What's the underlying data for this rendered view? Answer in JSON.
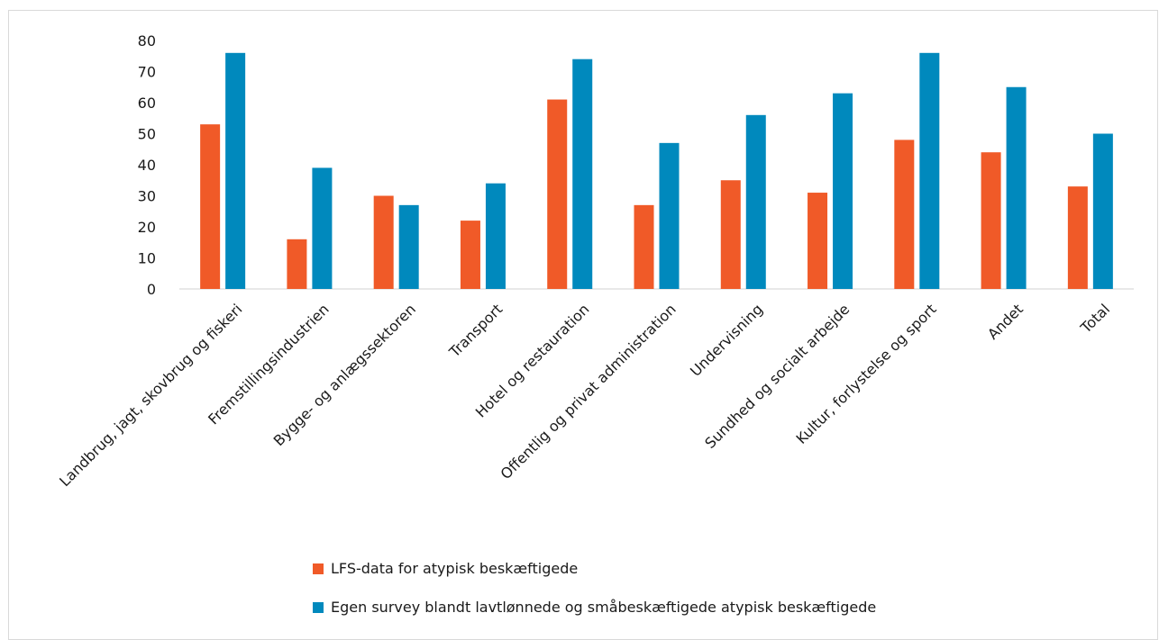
{
  "chart_data": {
    "type": "bar",
    "title": "",
    "xlabel": "",
    "ylabel": "",
    "ylim": [
      0,
      80
    ],
    "yticks": [
      0,
      10,
      20,
      30,
      40,
      50,
      60,
      70,
      80
    ],
    "grid": false,
    "legend_position": "bottom",
    "categories": [
      "Landbrug, jagt, skovbrug og fiskeri",
      "Fremstillingsindustrien",
      "Bygge- og anlægssektoren",
      "Transport",
      "Hotel og restauration",
      "Offentlig og privat administration",
      "Undervisning",
      "Sundhed og socialt arbejde",
      "Kultur, forlystelse og sport",
      "Andet",
      "Total"
    ],
    "series": [
      {
        "name": "LFS-data for atypisk beskæftigede",
        "color": "#f05a28",
        "values": [
          53,
          16,
          30,
          22,
          61,
          27,
          35,
          31,
          48,
          44,
          33
        ]
      },
      {
        "name": "Egen survey blandt lavtlønnede og småbeskæftigede atypisk beskæftigede",
        "color": "#0089bd",
        "values": [
          76,
          39,
          27,
          34,
          74,
          47,
          56,
          63,
          76,
          65,
          50
        ]
      }
    ]
  }
}
